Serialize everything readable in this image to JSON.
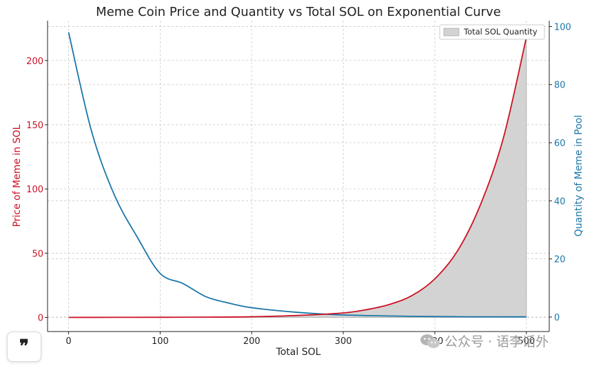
{
  "chart_data": {
    "type": "line",
    "title": "Meme Coin Price and Quantity vs Total SOL on Exponential Curve",
    "xlabel": "Total SOL",
    "ylabel_left": "Price of Meme in SOL",
    "ylabel_right": "Quantity of Meme in Pool",
    "xlim": [
      -23,
      525
    ],
    "ylim_left": [
      -11,
      231
    ],
    "ylim_right": [
      -5,
      102
    ],
    "x_ticks": [
      0,
      100,
      200,
      300,
      400,
      500
    ],
    "y_ticks_left": [
      0,
      50,
      100,
      150,
      200
    ],
    "y_ticks_right": [
      0,
      20,
      40,
      60,
      80,
      100
    ],
    "grid": true,
    "legend": {
      "position": "top-right",
      "entries": [
        "Total SOL Quantity"
      ]
    },
    "series": [
      {
        "axis": "left",
        "color": "#cc1122",
        "x": [
          0,
          50,
          100,
          150,
          200,
          250,
          300,
          325,
          350,
          375,
          400,
          425,
          450,
          475,
          500
        ],
        "values": [
          0.0,
          0.05,
          0.1,
          0.2,
          0.5,
          1.5,
          3.5,
          6,
          10,
          17,
          30,
          52,
          88,
          140,
          218
        ]
      },
      {
        "axis": "right",
        "color": "#1a75a8",
        "x": [
          0,
          25,
          50,
          75,
          100,
          125,
          150,
          175,
          200,
          250,
          300,
          400,
          500
        ],
        "values": [
          98,
          64,
          42,
          27.5,
          15,
          11.5,
          7,
          4.8,
          3.2,
          1.6,
          0.7,
          0.15,
          0.05
        ]
      }
    ],
    "fill": {
      "name": "Total SOL Quantity",
      "color": "#d3d3d3",
      "under_series": 0
    }
  },
  "ui": {
    "quote_button": "❞",
    "watermark_text": "公众号 · 语李话外"
  }
}
